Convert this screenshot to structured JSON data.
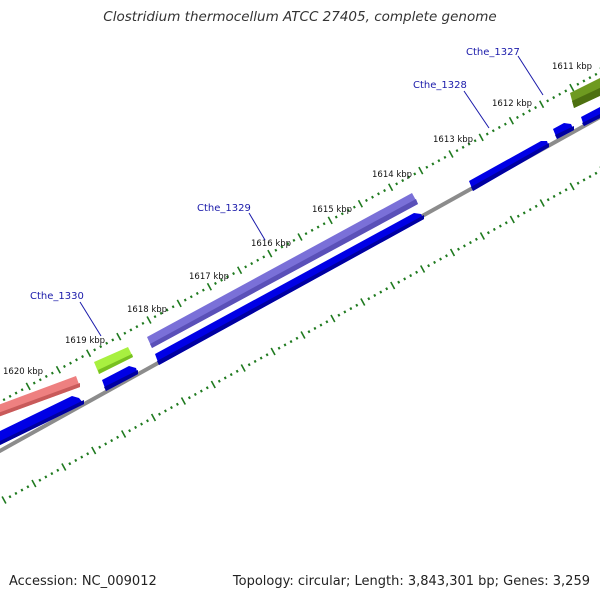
{
  "title": "Clostridium thermocellum ATCC 27405, complete genome",
  "footer": {
    "accession": "Accession: NC_009012",
    "summary": "Topology: circular; Length: 3,843,301 bp; Genes: 3,259"
  },
  "colors": {
    "backbone": "#8c8c8c",
    "tick": "#1f7a1f",
    "cds_blue": "#0000e6",
    "gene_label": "#1a1aaa",
    "gene_1330": "#ee8080",
    "gene_1330b": "#a8f040",
    "gene_1329": "#7a70d8",
    "gene_1327": "#6e9a20"
  },
  "kbp_labels": [
    "1611 kbp",
    "1612 kbp",
    "1613 kbp",
    "1614 kbp",
    "1615 kbp",
    "1616 kbp",
    "1617 kbp",
    "1618 kbp",
    "1619 kbp",
    "1620 kbp"
  ],
  "genes": [
    {
      "name": "Cthe_1327"
    },
    {
      "name": "Cthe_1328"
    },
    {
      "name": "Cthe_1329"
    },
    {
      "name": "Cthe_1330"
    }
  ]
}
